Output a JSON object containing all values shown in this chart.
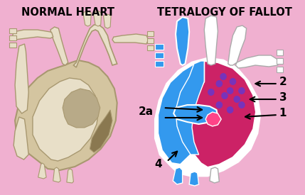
{
  "bg_color": "#f0b0d0",
  "title_left": "NORMAL HEART",
  "title_right": "TETRALOGY OF FALLOT",
  "title_fontsize": 10.5,
  "title_color": "black",
  "title_weight": "bold",
  "fig_width": 4.29,
  "fig_height": 2.75,
  "dpi": 100,
  "heart_base": "#d4c5a0",
  "heart_light": "#e8dfc8",
  "heart_dark": "#a89870",
  "heart_shadow": "#b8aa88",
  "blue": "#3399ee",
  "red": "#cc2266",
  "purple": "#7733bb",
  "white": "#ffffff",
  "outline": "#000000"
}
